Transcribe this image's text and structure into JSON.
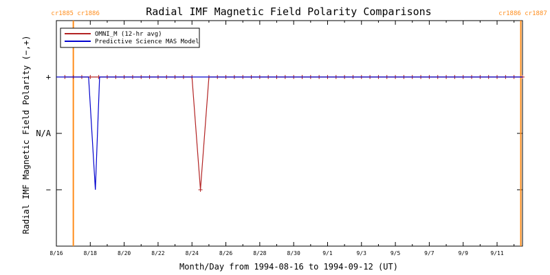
{
  "chart_data": {
    "type": "line",
    "title": "Radial IMF Magnetic Field Polarity Comparisons",
    "xlabel": "Month/Day from 1994-08-16 to 1994-09-12 (UT)",
    "ylabel": "Radial IMF Magnetic Field Polarity (−,+)",
    "x_ticks": [
      "8/16",
      "8/18",
      "8/20",
      "8/22",
      "8/24",
      "8/26",
      "8/28",
      "8/30",
      "9/1",
      "9/3",
      "9/5",
      "9/7",
      "9/9",
      "9/11"
    ],
    "y_ticks": [
      "+",
      "N/A",
      "−"
    ],
    "y_tick_values": [
      1,
      0,
      -1
    ],
    "xlim_days": [
      0,
      27.5
    ],
    "ylim": [
      -2,
      2
    ],
    "legend_position": "top-left",
    "carrington_markers": [
      {
        "day": 1.0,
        "labels": [
          "cr1885",
          "cr1886"
        ],
        "label_align": "right"
      },
      {
        "day": 27.4,
        "labels": [
          "cr1886",
          "cr1887"
        ],
        "label_align": "right"
      }
    ],
    "series": [
      {
        "name": "OMNI_M (12-hr avg)",
        "color": "#b22222",
        "points": [
          [
            0.5,
            1
          ],
          [
            1,
            1
          ],
          [
            1.5,
            1
          ],
          [
            2,
            1
          ],
          [
            2.5,
            1
          ],
          [
            3,
            1
          ],
          [
            3.5,
            1
          ],
          [
            4,
            1
          ],
          [
            4.5,
            1
          ],
          [
            5,
            1
          ],
          [
            5.5,
            1
          ],
          [
            6,
            1
          ],
          [
            6.5,
            1
          ],
          [
            7,
            1
          ],
          [
            7.5,
            1
          ],
          [
            8,
            1
          ],
          [
            8.5,
            -1
          ],
          [
            9,
            1
          ],
          [
            9.5,
            1
          ],
          [
            10,
            1
          ],
          [
            10.5,
            1
          ],
          [
            11,
            1
          ],
          [
            11.5,
            1
          ],
          [
            12,
            1
          ],
          [
            12.5,
            1
          ],
          [
            13,
            1
          ],
          [
            13.5,
            1
          ],
          [
            14,
            1
          ],
          [
            14.5,
            1
          ],
          [
            15,
            1
          ],
          [
            15.5,
            1
          ],
          [
            16,
            1
          ],
          [
            16.5,
            1
          ],
          [
            17,
            1
          ],
          [
            17.5,
            1
          ],
          [
            18,
            1
          ],
          [
            18.5,
            1
          ],
          [
            19,
            1
          ],
          [
            19.5,
            1
          ],
          [
            20,
            1
          ],
          [
            20.5,
            1
          ],
          [
            21,
            1
          ],
          [
            21.5,
            1
          ],
          [
            22,
            1
          ],
          [
            22.5,
            1
          ],
          [
            23,
            1
          ],
          [
            23.5,
            1
          ],
          [
            24,
            1
          ],
          [
            24.5,
            1
          ],
          [
            25,
            1
          ],
          [
            25.5,
            1
          ],
          [
            26,
            1
          ],
          [
            26.5,
            1
          ],
          [
            27,
            1
          ],
          [
            27.5,
            1
          ]
        ]
      },
      {
        "name": "Predictive Science MAS Model",
        "color": "#0000cd",
        "points": [
          [
            0,
            1
          ],
          [
            1.9,
            1
          ],
          [
            2.3,
            -1
          ],
          [
            2.55,
            1
          ],
          [
            27.5,
            1
          ]
        ]
      }
    ]
  }
}
